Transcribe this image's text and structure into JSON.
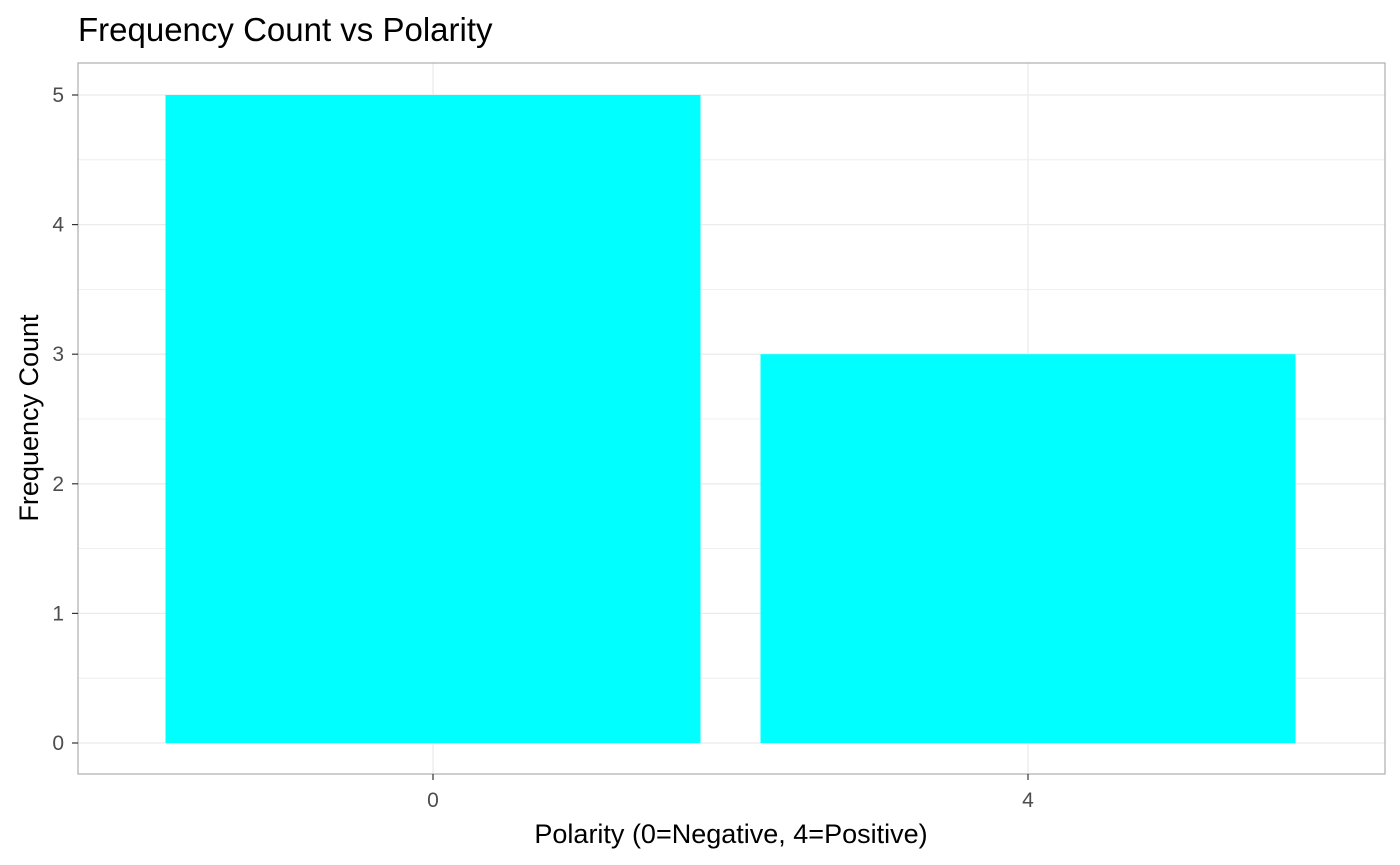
{
  "chart_data": {
    "type": "bar",
    "title": "Frequency Count vs Polarity",
    "xlabel": "Polarity (0=Negative, 4=Positive)",
    "ylabel": "Frequency Count",
    "categories": [
      "0",
      "4"
    ],
    "values": [
      5,
      3
    ],
    "ylim": [
      0,
      5
    ],
    "yticks": [
      "0",
      "1",
      "2",
      "3",
      "4",
      "5"
    ],
    "grid": true,
    "legend": "none",
    "bar_color": "#00FFFF",
    "grid_color": "#EBEBEB",
    "panel_border_color": "#B3B3B3"
  }
}
